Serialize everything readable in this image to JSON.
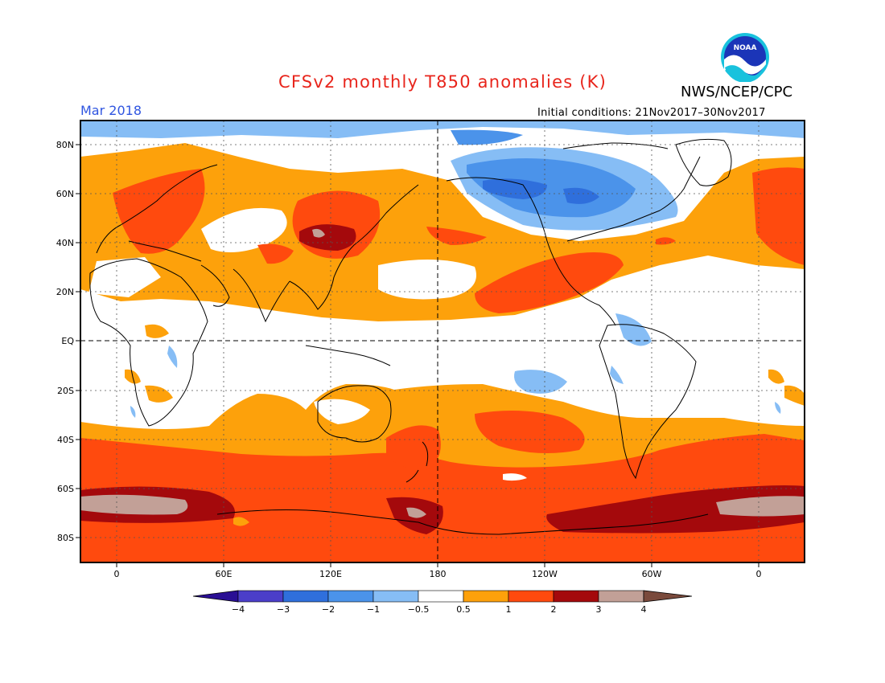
{
  "header": {
    "title": "CFSv2 monthly T850 anomalies (K)",
    "agency": "NWS/NCEP/CPC",
    "month": "Mar 2018",
    "initial_conditions": "Initial conditions: 21Nov2017–30Nov2017",
    "logo_text": "NOAA"
  },
  "map": {
    "lat_labels": [
      "80N",
      "60N",
      "40N",
      "20N",
      "EQ",
      "20S",
      "40S",
      "60S",
      "80S"
    ],
    "lon_labels": [
      "0",
      "60E",
      "120E",
      "180",
      "120W",
      "60W",
      "0"
    ]
  },
  "colorbar": {
    "labels": [
      "−4",
      "−3",
      "−2",
      "−1",
      "−0.5",
      "0.5",
      "1",
      "2",
      "3",
      "4"
    ],
    "colors": [
      "#2a0f94",
      "#4b3ec9",
      "#2f6fdc",
      "#4b93ea",
      "#86bdf5",
      "#ffffff",
      "#fda10b",
      "#ff4a0e",
      "#a4090c",
      "#c2a097",
      "#7a4a3c"
    ]
  },
  "palette": {
    "ocean_white": "#ffffff",
    "light_orange": "#fda10b",
    "red_orange": "#ff4a0e",
    "dark_red": "#a4090c",
    "tan": "#c2a097",
    "light_blue": "#86bdf5",
    "mid_blue": "#4b93ea",
    "blue": "#2f6fdc",
    "title_red": "#e8251c",
    "month_blue": "#2f55e0"
  }
}
